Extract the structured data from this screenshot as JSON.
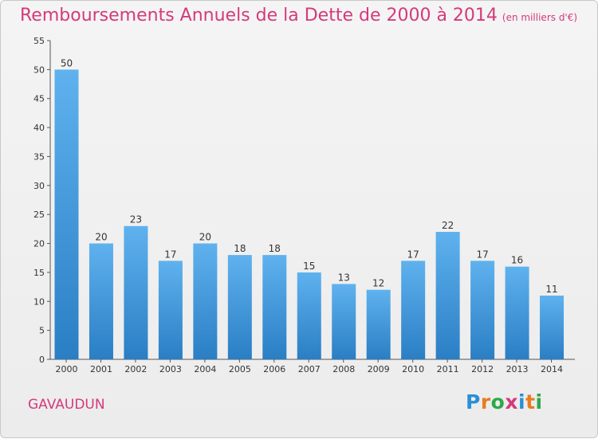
{
  "chart_data": {
    "type": "bar",
    "title": "Remboursements Annuels de la Dette de 2000 à 2014",
    "unit": "(en milliers d'€)",
    "categories": [
      "2000",
      "2001",
      "2002",
      "2003",
      "2004",
      "2005",
      "2006",
      "2007",
      "2008",
      "2009",
      "2010",
      "2011",
      "2012",
      "2013",
      "2014"
    ],
    "values": [
      50,
      20,
      23,
      17,
      20,
      18,
      18,
      15,
      13,
      12,
      17,
      22,
      17,
      16,
      11
    ],
    "ylim": [
      0,
      55
    ],
    "yticks": [
      0,
      5,
      10,
      15,
      20,
      25,
      30,
      35,
      40,
      45,
      50,
      55
    ],
    "grid": false,
    "bar_color": "#3a8fd8"
  },
  "footer": {
    "commune": "GAVAUDUN",
    "logo_letters": [
      "P",
      "r",
      "o",
      "x",
      "i",
      "t",
      "i"
    ],
    "logo_colors": [
      "#2b8fd6",
      "#e87c1e",
      "#2ea84a",
      "#d43a7c",
      "#2b8fd6",
      "#e87c1e",
      "#2ea84a"
    ]
  }
}
